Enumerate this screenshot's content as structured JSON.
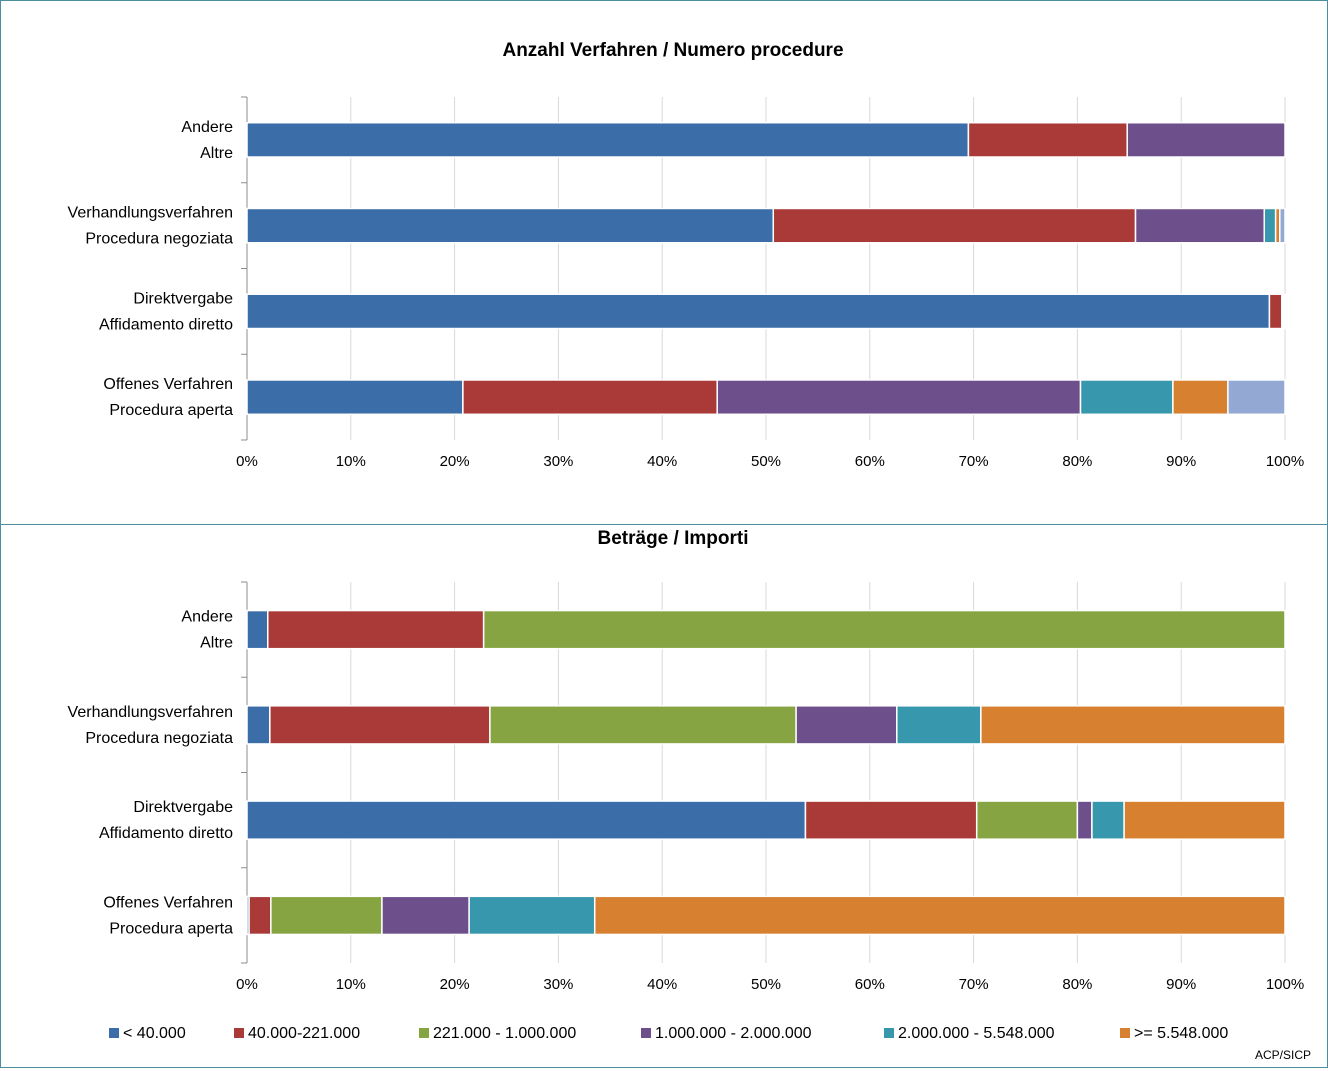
{
  "chart_data": [
    {
      "type": "bar",
      "orientation": "horizontal",
      "stacked": "percent",
      "title": "Anzahl Verfahren / Numero procedure",
      "categories": [
        [
          "Andere",
          "Altre"
        ],
        [
          "Verhandlungsverfahren",
          "Procedura negoziata"
        ],
        [
          "Direktvergabe",
          "Affidamento diretto"
        ],
        [
          "Offenes Verfahren",
          "Procedura aperta"
        ]
      ],
      "series": [
        {
          "color": "#3b6ea8",
          "values": [
            69.5,
            50.7,
            98.5,
            20.8
          ]
        },
        {
          "color": "#aa3a37",
          "values": [
            15.3,
            34.9,
            1.2,
            24.5
          ]
        },
        {
          "color": "#86a542",
          "values": [
            0,
            0,
            0,
            0
          ]
        },
        {
          "color": "#6d4f8c",
          "values": [
            15.2,
            12.4,
            0.1,
            35.0
          ]
        },
        {
          "color": "#3797ad",
          "values": [
            0,
            1.1,
            0.1,
            8.9
          ]
        },
        {
          "color": "#d7802f",
          "values": [
            0,
            0.4,
            0.05,
            5.3
          ]
        },
        {
          "color": "#93a9d3",
          "values": [
            0,
            0.5,
            0.05,
            5.5
          ]
        }
      ],
      "xticks": [
        "0%",
        "10%",
        "20%",
        "30%",
        "40%",
        "50%",
        "60%",
        "70%",
        "80%",
        "90%",
        "100%"
      ],
      "xlim": [
        0,
        100
      ],
      "grid": "vertical"
    },
    {
      "type": "bar",
      "orientation": "horizontal",
      "stacked": "percent",
      "title": "Beträge / Importi",
      "categories": [
        [
          "Andere",
          "Altre"
        ],
        [
          "Verhandlungsverfahren",
          "Procedura negoziata"
        ],
        [
          "Direktvergabe",
          "Affidamento diretto"
        ],
        [
          "Offenes Verfahren",
          "Procedura aperta"
        ]
      ],
      "series": [
        {
          "name": "< 40.000",
          "color": "#3b6ea8",
          "values": [
            2.0,
            2.2,
            53.8,
            0.2
          ]
        },
        {
          "name": "40.000-221.000",
          "color": "#aa3a37",
          "values": [
            20.8,
            21.2,
            16.5,
            2.1
          ]
        },
        {
          "name": "221.000 - 1.000.000",
          "color": "#86a542",
          "values": [
            77.2,
            29.5,
            9.7,
            10.7
          ]
        },
        {
          "name": "1.000.000 - 2.000.000",
          "color": "#6d4f8c",
          "values": [
            0,
            9.7,
            1.4,
            8.4
          ]
        },
        {
          "name": "2.000.000 - 5.548.000",
          "color": "#3797ad",
          "values": [
            0,
            8.1,
            3.1,
            12.1
          ]
        },
        {
          "name": ">= 5.548.000",
          "color": "#d7802f",
          "values": [
            0,
            29.3,
            15.5,
            66.5
          ]
        }
      ],
      "xticks": [
        "0%",
        "10%",
        "20%",
        "30%",
        "40%",
        "50%",
        "60%",
        "70%",
        "80%",
        "90%",
        "100%"
      ],
      "xlim": [
        0,
        100
      ],
      "grid": "vertical",
      "legend": "bottom"
    }
  ],
  "source_label": "ACP/SICP"
}
